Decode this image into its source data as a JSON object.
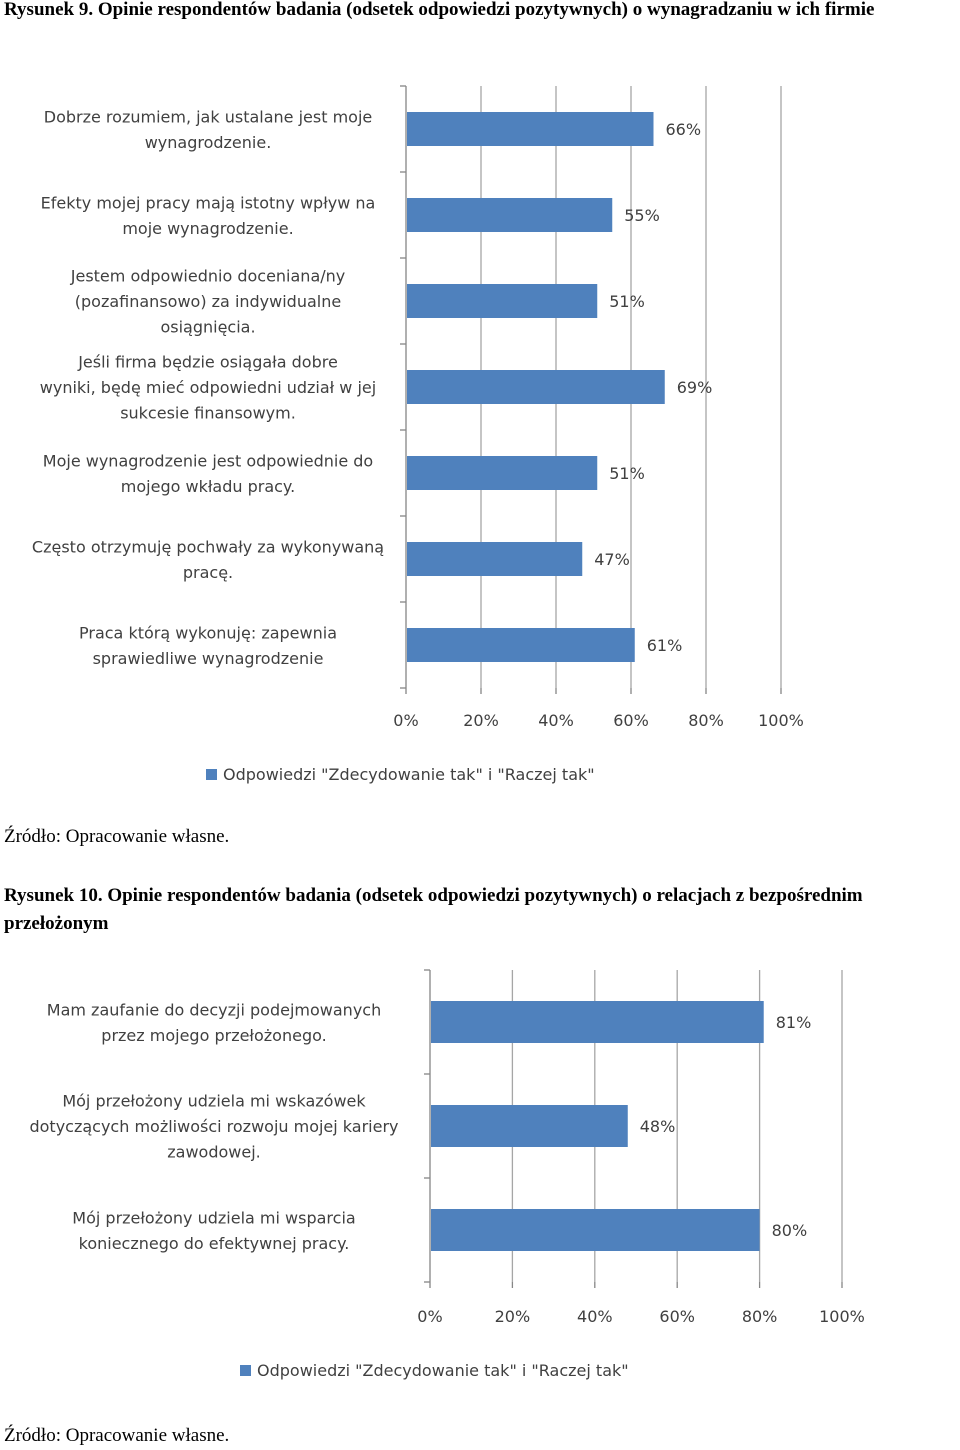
{
  "figure1": {
    "title": "Rysunek 9. Opinie respondentów badania (odsetek odpowiedzi pozytywnych) o wynagradzaniu  w ich firmie",
    "source": "Źródło: Opracowanie własne."
  },
  "figure2": {
    "title": "Rysunek 10. Opinie respondentów badania (odsetek odpowiedzi pozytywnych) o relacjach z bezpośrednim przełożonym",
    "source": "Źródło: Opracowanie własne."
  },
  "chart_data": [
    {
      "type": "bar",
      "orientation": "horizontal",
      "categories": [
        "Dobrze rozumiem, jak ustalane jest moje wynagrodzenie.",
        "Efekty mojej pracy mają istotny wpływ na moje wynagrodzenie.",
        "Jestem odpowiednio doceniana/ny (pozafinansowo) za indywidualne osiągnięcia.",
        "Jeśli firma będzie osiągała dobre wyniki, będę mieć odpowiedni udział  w jej sukcesie finansowym.",
        "Moje wynagrodzenie jest odpowiednie do mojego wkładu pracy.",
        "Często otrzymuję pochwały za wykonywaną pracę.",
        "Praca którą wykonuję:  zapewnia sprawiedliwe wynagrodzenie"
      ],
      "category_lines": [
        [
          "Dobrze rozumiem, jak ustalane jest moje",
          "wynagrodzenie."
        ],
        [
          "Efekty mojej pracy mają istotny wpływ na",
          "moje wynagrodzenie."
        ],
        [
          "Jestem odpowiednio doceniana/ny",
          "(pozafinansowo) za indywidualne",
          "osiągnięcia."
        ],
        [
          "Jeśli firma będzie osiągała dobre",
          "wyniki, będę mieć odpowiedni udział  w jej",
          "sukcesie finansowym."
        ],
        [
          "Moje wynagrodzenie jest odpowiednie do",
          "mojego wkładu pracy."
        ],
        [
          "Często otrzymuję pochwały za wykonywaną",
          "pracę."
        ],
        [
          "Praca którą wykonuję:  zapewnia",
          "sprawiedliwe wynagrodzenie"
        ]
      ],
      "series": [
        {
          "name": "Odpowiedzi \"Zdecydowanie tak\" i \"Raczej tak\"",
          "values": [
            66,
            55,
            51,
            69,
            51,
            47,
            61
          ],
          "data_labels": [
            "66%",
            "55%",
            "51%",
            "69%",
            "51%",
            "47%",
            "61%"
          ],
          "color": "#4f81bd"
        }
      ],
      "x_ticks": [
        "0%",
        "20%",
        "40%",
        "60%",
        "80%",
        "100%"
      ],
      "xlim": [
        0,
        100
      ],
      "grid": true,
      "legend_position": "bottom"
    },
    {
      "type": "bar",
      "orientation": "horizontal",
      "categories": [
        "Mam zaufanie do decyzji podejmowanych przez mojego przełożonego.",
        "Mój przełożony udziela mi wskazówek dotyczących możliwości rozwoju mojej kariery zawodowej.",
        "Mój przełożony udziela mi wsparcia koniecznego do efektywnej pracy."
      ],
      "category_lines": [
        [
          "Mam zaufanie do decyzji podejmowanych",
          "przez mojego przełożonego."
        ],
        [
          "Mój przełożony udziela mi wskazówek",
          "dotyczących możliwości  rozwoju mojej kariery",
          "zawodowej."
        ],
        [
          "Mój przełożony udziela mi wsparcia",
          "koniecznego do efektywnej pracy."
        ]
      ],
      "series": [
        {
          "name": "Odpowiedzi \"Zdecydowanie tak\" i \"Raczej tak\"",
          "values": [
            81,
            48,
            80
          ],
          "data_labels": [
            "81%",
            "48%",
            "80%"
          ],
          "color": "#4f81bd"
        }
      ],
      "x_ticks": [
        "0%",
        "20%",
        "40%",
        "60%",
        "80%",
        "100%"
      ],
      "xlim": [
        0,
        100
      ],
      "grid": true,
      "legend_position": "bottom"
    }
  ]
}
